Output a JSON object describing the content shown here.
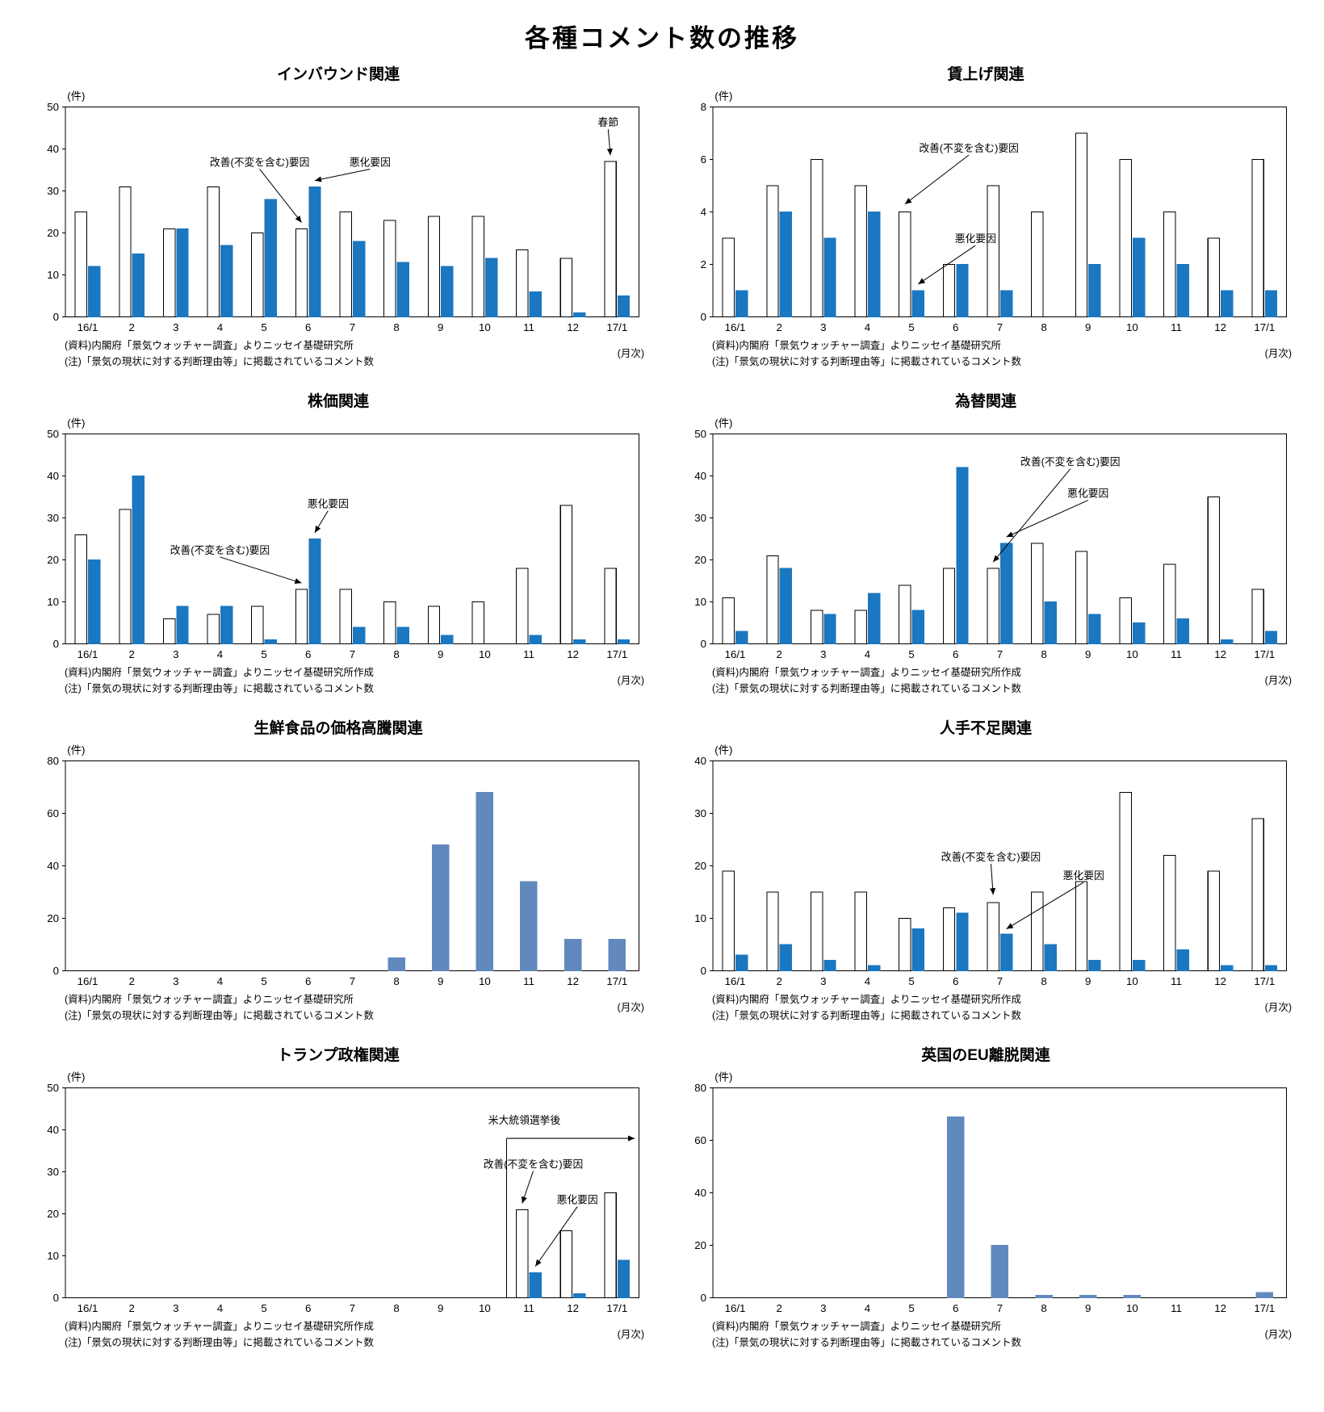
{
  "page_title": "各種コメント数の推移",
  "unit_label": "(件)",
  "month_axis_label": "(月次)",
  "categories": [
    "16/1",
    "2",
    "3",
    "4",
    "5",
    "6",
    "7",
    "8",
    "9",
    "10",
    "11",
    "12",
    "17/1"
  ],
  "colors": {
    "improve_fill": "#ffffff",
    "worsen_fill": "#1b77c0",
    "single_fill": "#6289be",
    "axis": "#000000"
  },
  "series_labels": {
    "improve": "改善(不変を含む)要因",
    "worsen": "悪化要因"
  },
  "chart_data": [
    {
      "type": "bar",
      "title": "インバウンド関連",
      "ylim": [
        0,
        50
      ],
      "yticks": [
        0,
        10,
        20,
        30,
        40,
        50
      ],
      "series": [
        {
          "name": "改善(不変を含む)要因",
          "fill": "#ffffff",
          "stroke": "#000000",
          "values": [
            25,
            31,
            21,
            31,
            20,
            21,
            25,
            23,
            24,
            24,
            16,
            14,
            37
          ]
        },
        {
          "name": "悪化要因",
          "fill": "#1b77c0",
          "stroke": "#1b77c0",
          "values": [
            12,
            15,
            21,
            17,
            28,
            31,
            18,
            13,
            12,
            14,
            6,
            1,
            5
          ]
        }
      ],
      "annotations": [
        {
          "type": "point",
          "text": "改善(不変を含む)要因",
          "label_u": 4.4,
          "label_v": 36,
          "tip_u": 5.35,
          "tip_v": 22.5
        },
        {
          "type": "point",
          "text": "悪化要因",
          "label_u": 6.9,
          "label_v": 36,
          "tip_u": 5.65,
          "tip_v": 32.5
        },
        {
          "type": "point",
          "text": "春節",
          "label_u": 12.3,
          "label_v": 45.5,
          "tip_u": 12.35,
          "tip_v": 38.5
        }
      ],
      "source_note": "(資料)内閣府「景気ウォッチャー調査」よりニッセイ基礎研究所",
      "note": "(注)「景気の現状に対する判断理由等」に掲載されているコメント数"
    },
    {
      "type": "bar",
      "title": "賃上げ関連",
      "ylim": [
        0,
        8
      ],
      "yticks": [
        0,
        2,
        4,
        6,
        8
      ],
      "series": [
        {
          "name": "改善(不変を含む)要因",
          "fill": "#ffffff",
          "stroke": "#000000",
          "values": [
            3,
            5,
            6,
            5,
            4,
            2,
            5,
            4,
            7,
            6,
            4,
            3,
            6
          ]
        },
        {
          "name": "悪化要因",
          "fill": "#1b77c0",
          "stroke": "#1b77c0",
          "values": [
            1,
            4,
            3,
            4,
            1,
            2,
            1,
            0,
            2,
            3,
            2,
            1,
            1
          ]
        }
      ],
      "annotations": [
        {
          "type": "point",
          "text": "改善(不変を含む)要因",
          "label_u": 5.8,
          "label_v": 6.3,
          "tip_u": 4.35,
          "tip_v": 4.3
        },
        {
          "type": "point",
          "text": "悪化要因",
          "label_u": 5.95,
          "label_v": 2.85,
          "tip_u": 4.65,
          "tip_v": 1.25
        }
      ],
      "source_note": "(資料)内閣府「景気ウォッチャー調査」よりニッセイ基礎研究所",
      "note": "(注)「景気の現状に対する判断理由等」に掲載されているコメント数"
    },
    {
      "type": "bar",
      "title": "株価関連",
      "ylim": [
        0,
        50
      ],
      "yticks": [
        0,
        10,
        20,
        30,
        40,
        50
      ],
      "series": [
        {
          "name": "改善(不変を含む)要因",
          "fill": "#ffffff",
          "stroke": "#000000",
          "values": [
            26,
            32,
            6,
            7,
            9,
            13,
            13,
            10,
            9,
            10,
            18,
            33,
            18
          ]
        },
        {
          "name": "悪化要因",
          "fill": "#1b77c0",
          "stroke": "#1b77c0",
          "values": [
            20,
            40,
            9,
            9,
            1,
            25,
            4,
            4,
            2,
            0,
            2,
            1,
            1
          ]
        }
      ],
      "annotations": [
        {
          "type": "point",
          "text": "悪化要因",
          "label_u": 5.95,
          "label_v": 32.5,
          "tip_u": 5.65,
          "tip_v": 26.5
        },
        {
          "type": "point",
          "text": "改善(不変を含む)要因",
          "label_u": 3.5,
          "label_v": 21.5,
          "tip_u": 5.35,
          "tip_v": 14.5
        }
      ],
      "source_note": "(資料)内閣府「景気ウォッチャー調査」よりニッセイ基礎研究所作成",
      "note": "(注)「景気の現状に対する判断理由等」に掲載されているコメント数"
    },
    {
      "type": "bar",
      "title": "為替関連",
      "ylim": [
        0,
        50
      ],
      "yticks": [
        0,
        10,
        20,
        30,
        40,
        50
      ],
      "series": [
        {
          "name": "改善(不変を含む)要因",
          "fill": "#ffffff",
          "stroke": "#000000",
          "values": [
            11,
            21,
            8,
            8,
            14,
            18,
            18,
            24,
            22,
            11,
            19,
            35,
            13
          ]
        },
        {
          "name": "悪化要因",
          "fill": "#1b77c0",
          "stroke": "#1b77c0",
          "values": [
            3,
            18,
            7,
            12,
            8,
            42,
            24,
            10,
            7,
            5,
            6,
            1,
            3
          ]
        }
      ],
      "annotations": [
        {
          "type": "point",
          "text": "改善(不変を含む)要因",
          "label_u": 8.1,
          "label_v": 42.5,
          "tip_u": 6.35,
          "tip_v": 19.5
        },
        {
          "type": "point",
          "text": "悪化要因",
          "label_u": 8.5,
          "label_v": 35,
          "tip_u": 6.65,
          "tip_v": 25.5
        }
      ],
      "source_note": "(資料)内閣府「景気ウォッチャー調査」よりニッセイ基礎研究所作成",
      "note": "(注)「景気の現状に対する判断理由等」に掲載されているコメント数"
    },
    {
      "type": "bar",
      "title": "生鮮食品の価格高騰関連",
      "ylim": [
        0,
        80
      ],
      "yticks": [
        0,
        20,
        40,
        60,
        80
      ],
      "series": [
        {
          "fill": "#6289be",
          "stroke": "#6289be",
          "values": [
            0,
            0,
            0,
            0,
            0,
            0,
            0,
            5,
            48,
            68,
            34,
            12,
            12
          ]
        }
      ],
      "annotations": [],
      "source_note": "(資料)内閣府「景気ウォッチャー調査」よりニッセイ基礎研究所",
      "note": "(注)「景気の現状に対する判断理由等」に掲載されているコメント数"
    },
    {
      "type": "bar",
      "title": "人手不足関連",
      "ylim": [
        0,
        40
      ],
      "yticks": [
        0,
        10,
        20,
        30,
        40
      ],
      "series": [
        {
          "name": "改善(不変を含む)要因",
          "fill": "#ffffff",
          "stroke": "#000000",
          "values": [
            19,
            15,
            15,
            15,
            10,
            12,
            13,
            15,
            17,
            34,
            22,
            19,
            29
          ]
        },
        {
          "name": "悪化要因",
          "fill": "#1b77c0",
          "stroke": "#1b77c0",
          "values": [
            3,
            5,
            2,
            1,
            8,
            11,
            7,
            5,
            2,
            2,
            4,
            1,
            1
          ]
        }
      ],
      "annotations": [
        {
          "type": "point",
          "text": "改善(不変を含む)要因",
          "label_u": 6.3,
          "label_v": 21,
          "tip_u": 6.35,
          "tip_v": 14.5
        },
        {
          "type": "point",
          "text": "悪化要因",
          "label_u": 8.4,
          "label_v": 17.5,
          "tip_u": 6.65,
          "tip_v": 8
        }
      ],
      "source_note": "(資料)内閣府「景気ウォッチャー調査」よりニッセイ基礎研究所作成",
      "note": "(注)「景気の現状に対する判断理由等」に掲載されているコメント数"
    },
    {
      "type": "bar",
      "title": "トランプ政権関連",
      "ylim": [
        0,
        50
      ],
      "yticks": [
        0,
        10,
        20,
        30,
        40,
        50
      ],
      "series": [
        {
          "name": "改善(不変を含む)要因",
          "fill": "#ffffff",
          "stroke": "#000000",
          "values": [
            0,
            0,
            0,
            0,
            0,
            0,
            0,
            0,
            0,
            0,
            21,
            16,
            25
          ]
        },
        {
          "name": "悪化要因",
          "fill": "#1b77c0",
          "stroke": "#1b77c0",
          "values": [
            0,
            0,
            0,
            0,
            0,
            0,
            0,
            0,
            0,
            0,
            6,
            1,
            9
          ]
        }
      ],
      "annotations": [
        {
          "type": "period",
          "text": "米大統領選挙後",
          "label_u": 10.4,
          "label_v": 41.5,
          "line_v": 38,
          "from_u": 10,
          "to_u": 12.9
        },
        {
          "type": "point",
          "text": "改善(不変を含む)要因",
          "label_u": 10.6,
          "label_v": 31,
          "tip_u": 10.35,
          "tip_v": 22.5
        },
        {
          "type": "point",
          "text": "悪化要因",
          "label_u": 11.6,
          "label_v": 22.5,
          "tip_u": 10.65,
          "tip_v": 7.5
        }
      ],
      "source_note": "(資料)内閣府「景気ウォッチャー調査」よりニッセイ基礎研究所作成",
      "note": "(注)「景気の現状に対する判断理由等」に掲載されているコメント数"
    },
    {
      "type": "bar",
      "title": "英国のEU離脱関連",
      "ylim": [
        0,
        80
      ],
      "yticks": [
        0,
        20,
        40,
        60,
        80
      ],
      "series": [
        {
          "fill": "#6289be",
          "stroke": "#6289be",
          "values": [
            0,
            0,
            0,
            0,
            0,
            69,
            20,
            1,
            1,
            1,
            0,
            0,
            2
          ]
        }
      ],
      "annotations": [],
      "source_note": "(資料)内閣府「景気ウォッチャー調査」よりニッセイ基礎研究所",
      "note": "(注)「景気の現状に対する判断理由等」に掲載されているコメント数"
    }
  ]
}
